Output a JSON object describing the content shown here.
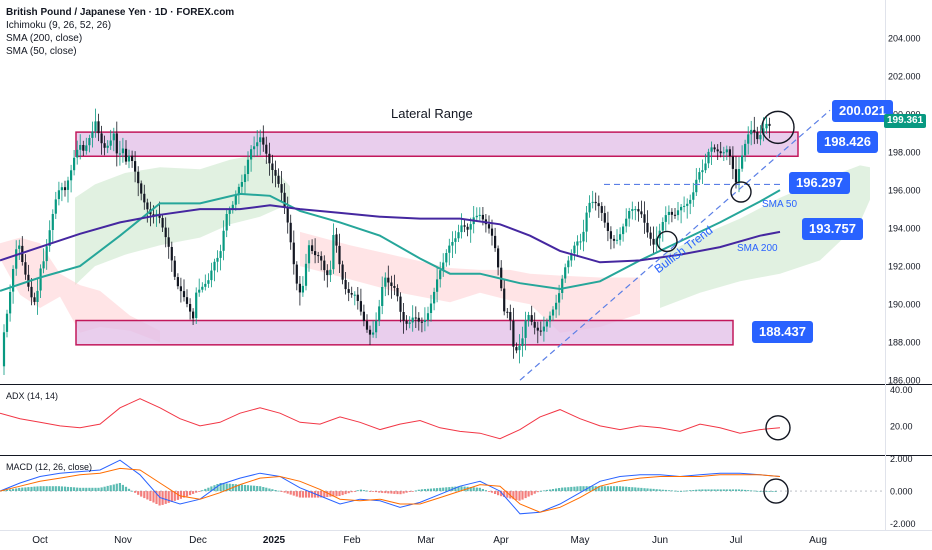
{
  "header": {
    "title": "British Pound / Japanese Yen · 1D · FOREX.com",
    "indicators": [
      "Ichimoku (9, 26, 52, 26)",
      "SMA (200, close)",
      "SMA (50, close)"
    ]
  },
  "annotations": {
    "range_title": "Lateral Range",
    "trend_label": "Bullish Trend",
    "sma50_label": "SMA 50",
    "sma200_label": "SMA 200"
  },
  "level_tags": [
    "200.021",
    "198.426",
    "196.297",
    "193.757",
    "188.437"
  ],
  "current_price": "199.361",
  "colors": {
    "up": "#089981",
    "down": "#131722",
    "zone_fill": "#e1bee7",
    "zone_border": "#c2185b",
    "sma50": "#26a69a",
    "sma200": "#4527a0",
    "tag": "#2962ff",
    "adx": "#f23645",
    "macd": "#2962ff",
    "signal": "#ff6d00",
    "cloud_green": "#c8e6c9",
    "cloud_red": "#ffcdd2"
  },
  "panels": {
    "adx_label": "ADX (14, 14)",
    "macd_label": "MACD (12, 26, close)"
  },
  "chart_data": [
    {
      "type": "candlestick",
      "title": "British Pound / Japanese Yen · 1D · FOREX.com",
      "x_ticks": [
        "Oct",
        "Nov",
        "Dec",
        "2025",
        "Feb",
        "Mar",
        "Apr",
        "May",
        "Jun",
        "Jul",
        "Aug"
      ],
      "y_ticks": [
        "186.000",
        "188.000",
        "190.000",
        "192.000",
        "194.000",
        "196.000",
        "198.000",
        "200.000",
        "202.000",
        "204.000"
      ],
      "ylim": [
        185.8,
        206.0
      ],
      "path_x": [
        0,
        3,
        8,
        13,
        18,
        21,
        27,
        31,
        36,
        40,
        44,
        48,
        53,
        57,
        61,
        65,
        68,
        72,
        75,
        80,
        84,
        88,
        92,
        96,
        100,
        105,
        109,
        114,
        118,
        122,
        126,
        130,
        134,
        140,
        146,
        152,
        158,
        164,
        170,
        176,
        182,
        188,
        193,
        196,
        202,
        208,
        214,
        220,
        226,
        232,
        238,
        244,
        250,
        256,
        260,
        264,
        270,
        276,
        282,
        288,
        292,
        296,
        300,
        304,
        308,
        314,
        320,
        326,
        330,
        334,
        338,
        344,
        350,
        356,
        362,
        368,
        372,
        378,
        384,
        390,
        396,
        402,
        408,
        414,
        420,
        426,
        432,
        438,
        444,
        448,
        456,
        462,
        468,
        474,
        480,
        486,
        490,
        494,
        500,
        505,
        509,
        512,
        515,
        518,
        521,
        524,
        528,
        534,
        540,
        546,
        552,
        558,
        564,
        570,
        576,
        582,
        588,
        594,
        600,
        606,
        612,
        618,
        624,
        630,
        636,
        642,
        648,
        654,
        660,
        664,
        668,
        674,
        680,
        686,
        692,
        698,
        704,
        710,
        716,
        722,
        728,
        733,
        736,
        739,
        742,
        746,
        750,
        754,
        758,
        762,
        766,
        770,
        774,
        778
      ],
      "path_y": [
        186.0,
        188.2,
        189.8,
        191.8,
        193.5,
        192.5,
        191.2,
        190.4,
        190.0,
        191.8,
        192.3,
        193.4,
        194.8,
        195.8,
        196.2,
        196.0,
        196.5,
        197.2,
        197.9,
        198.4,
        198.0,
        198.6,
        199.0,
        199.7,
        198.6,
        198.2,
        198.4,
        199.0,
        197.5,
        198.4,
        197.5,
        197.9,
        197.2,
        196.0,
        195.1,
        194.6,
        194.8,
        193.8,
        192.8,
        191.1,
        190.6,
        189.9,
        189.2,
        190.6,
        190.9,
        191.2,
        192.2,
        192.6,
        194.7,
        195.1,
        196.1,
        196.6,
        198.1,
        198.4,
        198.8,
        198.3,
        197.3,
        196.7,
        195.8,
        194.2,
        192.8,
        191.2,
        190.6,
        191.1,
        193.2,
        192.6,
        192.5,
        191.5,
        191.6,
        194.0,
        192.5,
        190.9,
        190.5,
        190.5,
        189.4,
        188.5,
        188.3,
        189.5,
        191.5,
        191.0,
        190.8,
        189.2,
        188.9,
        189.4,
        189.0,
        189.2,
        190.2,
        191.5,
        192.3,
        193.0,
        193.5,
        194.2,
        193.9,
        194.6,
        194.7,
        194.2,
        193.9,
        193.3,
        191.3,
        189.3,
        189.8,
        188.3,
        187.1,
        188.1,
        187.5,
        188.9,
        189.5,
        188.8,
        188.5,
        189.0,
        189.6,
        190.3,
        191.8,
        192.5,
        193.3,
        193.3,
        195.3,
        195.4,
        195.1,
        194.1,
        193.3,
        193.4,
        194.2,
        195.0,
        195.0,
        194.7,
        193.7,
        193.1,
        193.9,
        194.5,
        194.9,
        194.6,
        195.1,
        195.2,
        195.6,
        196.9,
        197.1,
        198.3,
        198.1,
        197.9,
        198.2,
        197.1,
        196.4,
        197.1,
        197.8,
        198.6,
        199.2,
        199.1,
        198.6,
        199.1,
        199.5,
        199.36
      ],
      "series": [
        {
          "name": "SMA 50",
          "x": [
            0,
            40,
            80,
            120,
            160,
            200,
            240,
            270,
            300,
            340,
            380,
            420,
            450,
            480,
            520,
            560,
            600,
            640,
            680,
            720,
            760,
            780
          ],
          "y": [
            190.7,
            191.4,
            192.0,
            193.6,
            195.3,
            195.3,
            195.8,
            195.7,
            194.9,
            194.3,
            193.6,
            192.4,
            191.6,
            191.6,
            191.1,
            190.8,
            191.2,
            192.3,
            193.3,
            194.3,
            195.4,
            196.0
          ]
        },
        {
          "name": "SMA 200",
          "x": [
            0,
            40,
            80,
            120,
            160,
            200,
            240,
            270,
            300,
            340,
            380,
            420,
            460,
            500,
            530,
            560,
            600,
            640,
            680,
            720,
            760,
            780
          ],
          "y": [
            192.3,
            193.0,
            193.7,
            194.3,
            194.7,
            195.0,
            195.0,
            195.2,
            195.0,
            194.8,
            194.6,
            194.5,
            194.5,
            194.2,
            193.6,
            192.8,
            192.2,
            192.3,
            192.6,
            193.0,
            193.6,
            193.8
          ]
        }
      ],
      "cloud": [
        {
          "name": "bullish cloud",
          "x": [
            75,
            95,
            125,
            160,
            200,
            230,
            260,
            290
          ],
          "top": [
            195.6,
            196.3,
            196.9,
            197.2,
            197.1,
            197.6,
            197.9,
            196.2
          ],
          "bottom": [
            191.0,
            192.0,
            192.6,
            193.1,
            193.5,
            194.2,
            194.6,
            195.3
          ]
        },
        {
          "name": "bearish cloud",
          "x": [
            0,
            20,
            40,
            60,
            80,
            100,
            130,
            160
          ],
          "top": [
            193.2,
            193.5,
            193.2,
            191.6,
            191.0,
            190.7,
            189.4,
            188.6
          ],
          "bottom": [
            192.4,
            190.5,
            189.8,
            190.4,
            188.5,
            188.8,
            188.6,
            188.0
          ]
        },
        {
          "name": "bearish cloud",
          "x": [
            300,
            350,
            400,
            450,
            480,
            510,
            530,
            560,
            600,
            640
          ],
          "top": [
            193.8,
            193.1,
            192.5,
            191.9,
            191.8,
            191.8,
            191.6,
            191.5,
            191.4,
            191.4
          ],
          "bottom": [
            192.0,
            191.3,
            190.6,
            190.1,
            190.6,
            190.2,
            190.0,
            188.5,
            188.8,
            189.5
          ]
        },
        {
          "name": "bullish cloud",
          "x": [
            660,
            700,
            740,
            780,
            820,
            860,
            870
          ],
          "top": [
            192.5,
            193.6,
            194.5,
            195.6,
            196.5,
            197.3,
            197.2
          ],
          "bottom": [
            189.8,
            190.6,
            191.2,
            191.6,
            192.3,
            194.3,
            195.5
          ]
        }
      ],
      "zones": [
        {
          "name": "upper range",
          "y_low": 197.78,
          "y_high": 199.05
        },
        {
          "name": "lower range",
          "y_low": 187.86,
          "y_high": 189.14
        }
      ],
      "levels": [
        196.297
      ],
      "trendline": {
        "x": [
          520,
          830
        ],
        "y": [
          186.0,
          200.2
        ]
      },
      "circles": [
        {
          "x": 778,
          "y": 199.3
        },
        {
          "x": 741,
          "y": 195.9
        },
        {
          "x": 667,
          "y": 193.3
        }
      ]
    },
    {
      "type": "line",
      "title": "ADX (14, 14)",
      "y_ticks": [
        "20.00",
        "40.00"
      ],
      "ylim": [
        4,
        42
      ],
      "series": [
        {
          "name": "ADX",
          "x": [
            0,
            20,
            40,
            60,
            80,
            100,
            120,
            140,
            160,
            180,
            200,
            220,
            240,
            260,
            280,
            300,
            320,
            340,
            360,
            380,
            400,
            420,
            440,
            460,
            480,
            500,
            520,
            540,
            560,
            580,
            600,
            620,
            640,
            660,
            680,
            700,
            720,
            740,
            760,
            780
          ],
          "y": [
            27,
            24,
            22,
            20,
            19,
            21,
            30,
            35,
            30,
            24,
            20,
            22,
            27,
            30,
            27,
            22,
            21,
            25,
            22,
            18,
            21,
            23,
            19,
            17,
            16,
            13,
            18,
            25,
            29,
            24,
            20,
            18,
            20,
            19,
            17,
            21,
            19,
            16,
            18,
            19
          ]
        }
      ],
      "circles": [
        {
          "x": 778,
          "y": 19
        }
      ]
    },
    {
      "type": "bar+line",
      "title": "MACD (12, 26, close)",
      "y_ticks": [
        "-2.000",
        "0.000",
        "2.000"
      ],
      "ylim": [
        -2.4,
        2.1
      ],
      "series": [
        {
          "name": "MACD",
          "x": [
            0,
            20,
            40,
            60,
            80,
            100,
            120,
            140,
            160,
            180,
            200,
            220,
            240,
            260,
            280,
            300,
            320,
            340,
            360,
            380,
            400,
            420,
            440,
            460,
            480,
            500,
            520,
            540,
            560,
            580,
            600,
            620,
            640,
            660,
            680,
            700,
            720,
            740,
            760,
            780
          ],
          "y": [
            0.0,
            0.5,
            0.9,
            1.1,
            1.2,
            1.3,
            1.9,
            1.0,
            -0.4,
            -0.8,
            -0.5,
            0.4,
            0.8,
            1.1,
            0.9,
            0.2,
            -0.3,
            -0.8,
            -0.5,
            -0.6,
            -1.0,
            -0.7,
            -0.2,
            0.3,
            0.6,
            0.0,
            -1.4,
            -1.3,
            -0.8,
            -0.1,
            0.6,
            0.9,
            1.0,
            1.0,
            0.9,
            1.0,
            1.1,
            1.1,
            1.0,
            0.9
          ]
        },
        {
          "name": "Signal",
          "x": [
            0,
            20,
            40,
            60,
            80,
            100,
            120,
            140,
            160,
            180,
            200,
            220,
            240,
            260,
            280,
            300,
            320,
            340,
            360,
            380,
            400,
            420,
            440,
            460,
            480,
            500,
            520,
            540,
            560,
            580,
            600,
            620,
            640,
            660,
            680,
            700,
            720,
            740,
            760,
            780
          ],
          "y": [
            0.0,
            0.3,
            0.6,
            0.8,
            1.0,
            1.1,
            1.4,
            1.3,
            0.5,
            -0.3,
            -0.5,
            -0.1,
            0.4,
            0.8,
            0.9,
            0.6,
            0.1,
            -0.5,
            -0.6,
            -0.5,
            -0.8,
            -0.8,
            -0.4,
            0.0,
            0.4,
            0.3,
            -0.8,
            -1.3,
            -1.0,
            -0.4,
            0.3,
            0.6,
            0.8,
            0.9,
            0.9,
            0.9,
            1.0,
            1.0,
            1.0,
            0.9
          ]
        }
      ],
      "circles": [
        {
          "x": 776,
          "y": 0.0
        }
      ]
    }
  ],
  "x_axis": {
    "labels": [
      "Oct",
      "Nov",
      "Dec",
      "2025",
      "Feb",
      "Mar",
      "Apr",
      "May",
      "Jun",
      "Jul",
      "Aug"
    ]
  }
}
